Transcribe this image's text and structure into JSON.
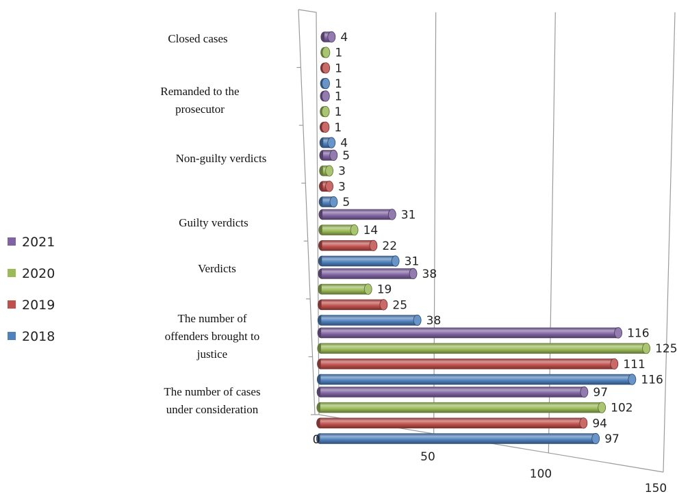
{
  "chart_data": {
    "type": "bar",
    "orientation": "horizontal",
    "style": "3d-cylinder",
    "categories": [
      [
        "The number of cases",
        "under consideration"
      ],
      [
        "The number of",
        "offenders brought to",
        "justice"
      ],
      [
        "Verdicts"
      ],
      [
        "Guilty verdicts"
      ],
      [
        "Non-guilty verdicts"
      ],
      [
        "Remanded to the",
        "prosecutor"
      ],
      [
        "Closed cases"
      ]
    ],
    "series": [
      {
        "name": "2018",
        "color": "#4F81BD",
        "values": [
          97,
          116,
          38,
          31,
          5,
          4,
          1
        ]
      },
      {
        "name": "2019",
        "color": "#C0504D",
        "values": [
          94,
          111,
          25,
          22,
          3,
          1,
          1
        ]
      },
      {
        "name": "2020",
        "color": "#9BBB59",
        "values": [
          102,
          125,
          19,
          14,
          3,
          1,
          1
        ]
      },
      {
        "name": "2021",
        "color": "#8064A2",
        "values": [
          97,
          116,
          38,
          31,
          5,
          1,
          4
        ]
      }
    ],
    "xlim": [
      0,
      150
    ],
    "xticks": [
      0,
      50,
      100,
      150
    ],
    "grid": true,
    "legend_position": "left",
    "legend_order": [
      "2021",
      "2020",
      "2019",
      "2018"
    ]
  }
}
